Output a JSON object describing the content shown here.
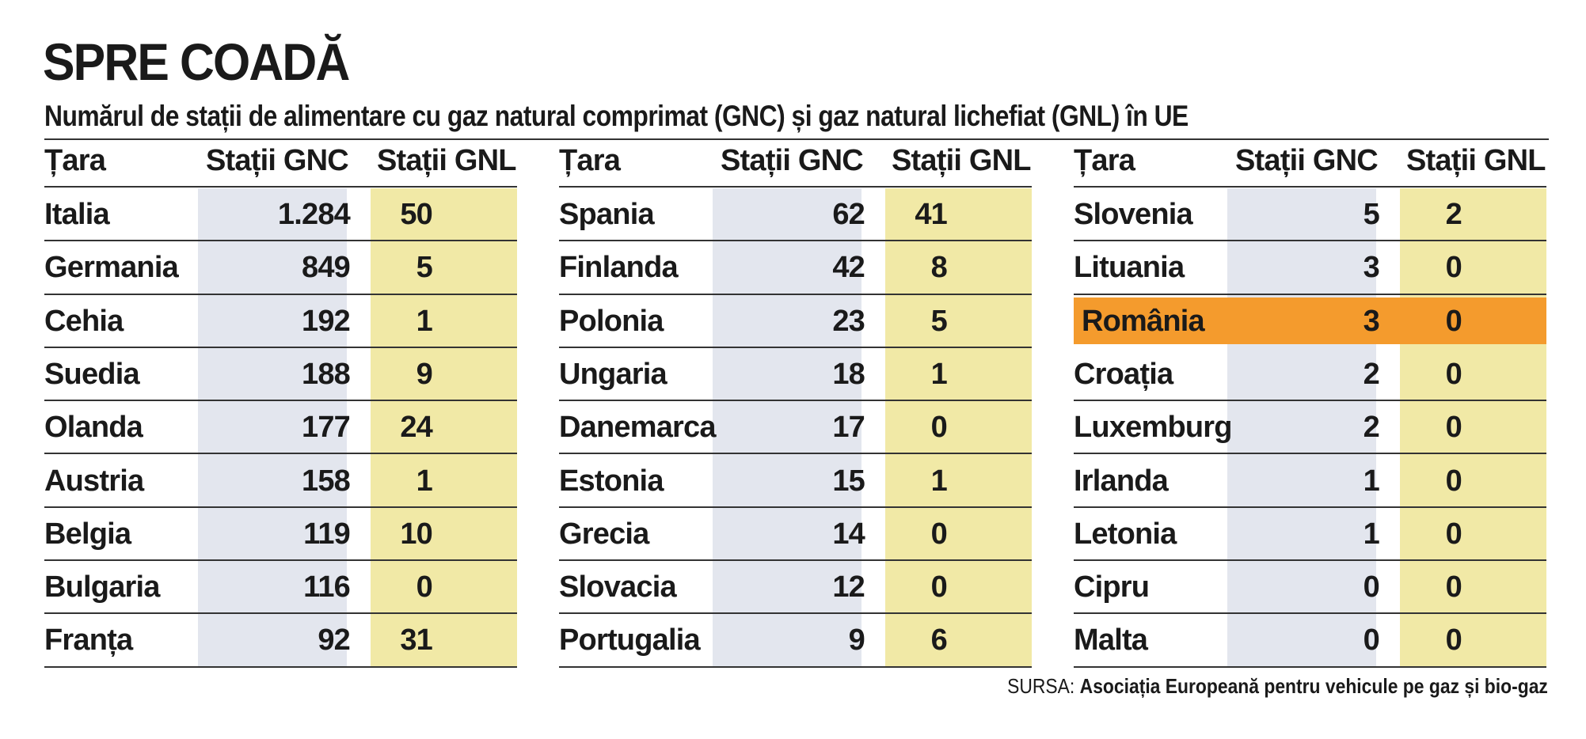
{
  "chart_data": {
    "type": "table",
    "title": "SPRE COADĂ",
    "subtitle": "Numărul de stații de alimentare cu gaz natural comprimat (GNC) și gaz natural lichefiat (GNL) în UE",
    "columns": [
      "Țara",
      "Stații GNC",
      "Stații GNL"
    ],
    "tables": [
      {
        "rows": [
          {
            "country": "Italia",
            "gnc": "1.284",
            "gnl": "50"
          },
          {
            "country": "Germania",
            "gnc": "849",
            "gnl": "5"
          },
          {
            "country": "Cehia",
            "gnc": "192",
            "gnl": "1"
          },
          {
            "country": "Suedia",
            "gnc": "188",
            "gnl": "9"
          },
          {
            "country": "Olanda",
            "gnc": "177",
            "gnl": "24"
          },
          {
            "country": "Austria",
            "gnc": "158",
            "gnl": "1"
          },
          {
            "country": "Belgia",
            "gnc": "119",
            "gnl": "10"
          },
          {
            "country": "Bulgaria",
            "gnc": "116",
            "gnl": "0"
          },
          {
            "country": "Franța",
            "gnc": "92",
            "gnl": "31"
          }
        ]
      },
      {
        "rows": [
          {
            "country": "Spania",
            "gnc": "62",
            "gnl": "41"
          },
          {
            "country": "Finlanda",
            "gnc": "42",
            "gnl": "8"
          },
          {
            "country": "Polonia",
            "gnc": "23",
            "gnl": "5"
          },
          {
            "country": "Ungaria",
            "gnc": "18",
            "gnl": "1"
          },
          {
            "country": "Danemarca",
            "gnc": "17",
            "gnl": "0"
          },
          {
            "country": "Estonia",
            "gnc": "15",
            "gnl": "1"
          },
          {
            "country": "Grecia",
            "gnc": "14",
            "gnl": "0"
          },
          {
            "country": "Slovacia",
            "gnc": "12",
            "gnl": "0"
          },
          {
            "country": "Portugalia",
            "gnc": "9",
            "gnl": "6"
          }
        ]
      },
      {
        "rows": [
          {
            "country": "Slovenia",
            "gnc": "5",
            "gnl": "2"
          },
          {
            "country": "Lituania",
            "gnc": "3",
            "gnl": "0"
          },
          {
            "country": "România",
            "gnc": "3",
            "gnl": "0",
            "highlight": true
          },
          {
            "country": "Croația",
            "gnc": "2",
            "gnl": "0"
          },
          {
            "country": "Luxemburg",
            "gnc": "2",
            "gnl": "0"
          },
          {
            "country": "Irlanda",
            "gnc": "1",
            "gnl": "0"
          },
          {
            "country": "Letonia",
            "gnc": "1",
            "gnl": "0"
          },
          {
            "country": "Cipru",
            "gnc": "0",
            "gnl": "0"
          },
          {
            "country": "Malta",
            "gnc": "0",
            "gnl": "0"
          }
        ]
      }
    ],
    "source_label": "SURSA:",
    "source": "Asociația Europeană pentru vehicule pe gaz și bio-gaz",
    "colors": {
      "gnc_band": "#e3e6ee",
      "gnl_band": "#f1e9a6",
      "highlight": "#f49b2d"
    }
  }
}
